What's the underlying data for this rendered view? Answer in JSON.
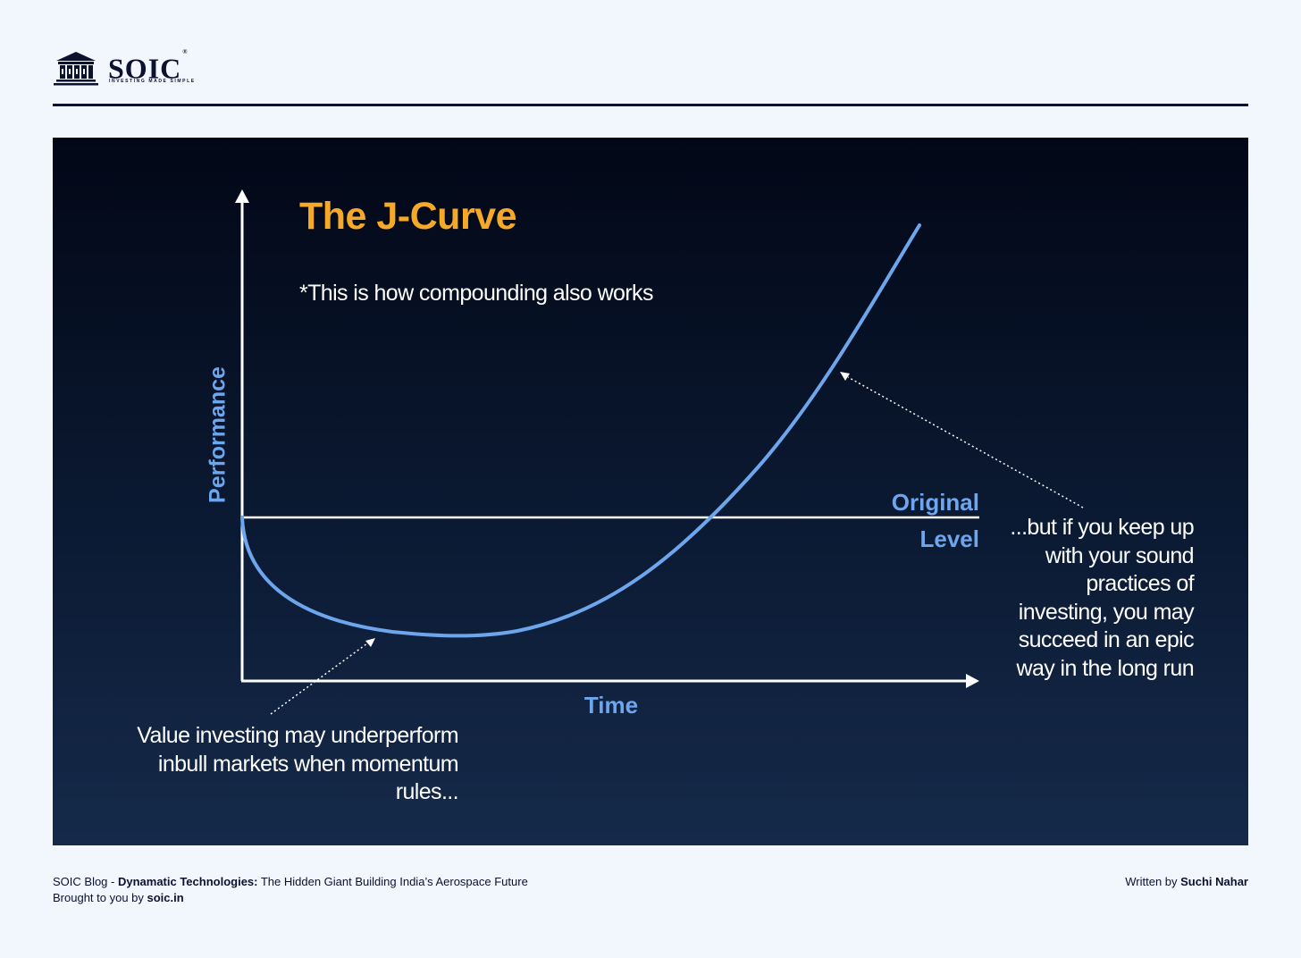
{
  "brand": {
    "name": "SOIC",
    "tagline": "INVESTING MADE SIMPLE",
    "colors": {
      "navy": "#0b1230",
      "accent": "#f6a929",
      "curve": "#6ea6ee",
      "background": "#f2f6fd"
    }
  },
  "diagram": {
    "title": "The J-Curve",
    "subtitle": "*This is how compounding also works",
    "y_axis_label": "Performance",
    "x_axis_label": "Time",
    "reference_line_label": [
      "Original",
      "Level"
    ],
    "annotation_right": [
      "...but if you keep up",
      "with your sound",
      "practices of",
      "investing, you may",
      "succeed in an epic",
      "way in the long run"
    ],
    "annotation_left": [
      "Value investing may underperform",
      "inbull markets when momentum",
      "rules..."
    ]
  },
  "footer": {
    "blog_prefix": "SOIC Blog - ",
    "blog_company": "Dynamatic Technologies:",
    "blog_title": " The Hidden Giant Building India’s Aerospace Future",
    "brought_prefix": "Brought to you by ",
    "brought_site": "soic.in",
    "written_prefix": "Written by ",
    "author": "Suchi Nahar"
  }
}
